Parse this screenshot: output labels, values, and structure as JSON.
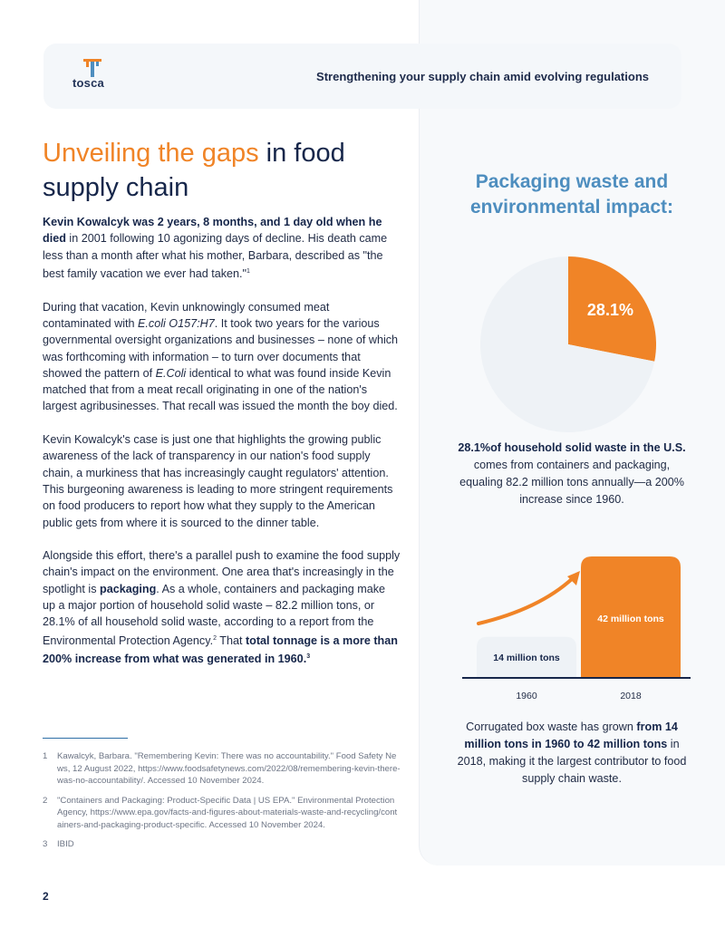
{
  "header": {
    "logo_text": "tosca",
    "tagline": "Strengthening your supply chain amid evolving regulations"
  },
  "title": {
    "accent": "Unveiling the gaps",
    "rest": " in food supply chain"
  },
  "body": {
    "p1_bold": "Kevin Kowalcyk was 2 years, 8 months, and 1 day old when he died",
    "p1_rest": " in 2001 following 10 agonizing days of decline. His death came less than a month after what his mother, Barbara, described as \"the best family vacation we ever had taken.\"",
    "p1_sup": "1",
    "p2_a": "During that vacation, Kevin unknowingly consumed meat contaminated with ",
    "p2_i1": "E.coli O157:H7",
    "p2_b": ". It took two years for the various governmental oversight organizations and businesses – none of which was forthcoming with information – to turn over documents that showed the pattern of ",
    "p2_i2": "E.Coli",
    "p2_c": " identical to what was found inside Kevin matched that from a meat recall originating in one of the nation's largest agribusinesses. That recall was issued the month the boy died.",
    "p3": "Kevin Kowalcyk's case is just one that highlights the growing public awareness of the lack of transparency in our nation's food supply chain, a murkiness that has increasingly caught regulators' attention. This burgeoning awareness is leading to more stringent requirements on food producers to report how what they supply to the American public gets from where it is sourced to the dinner table.",
    "p4_a": "Alongside this effort, there's a parallel push to examine the food supply chain's impact on the environment. One area that's increasingly in the spotlight is ",
    "p4_b1": "packaging",
    "p4_b": ". As a whole, containers and packaging make up a major portion of household solid waste – 82.2 million tons, or 28.1% of all household solid waste, according to a report from the Environmental Protection Agency.",
    "p4_sup1": "2",
    "p4_c": " That ",
    "p4_b2": "total tonnage is a more than 200% increase from what was generated in 1960.",
    "p4_sup2": "3"
  },
  "footnotes": [
    {
      "num": "1",
      "text": "Kawalcyk, Barbara. \"Remembering Kevin: There was no accountability.\" Food Safety News, 12 August 2022, https://www.foodsafetynews.com/2022/08/remembering-kevin-there-was-no-accountability/. Accessed 10 November 2024."
    },
    {
      "num": "2",
      "text": "\"Containers and Packaging: Product-Specific Data | US EPA.\" Environmental Protection Agency, https://www.epa.gov/facts-and-figures-about-materials-waste-and-recycling/containers-and-packaging-product-specific. Accessed 10 November 2024."
    },
    {
      "num": "3",
      "text": "IBID"
    }
  ],
  "page_number": "2",
  "sidebar": {
    "heading": "Packaging waste and environmental impact:",
    "pie_caption_bold": "28.1%of household solid waste in the U.S.",
    "pie_caption_rest": " comes from containers and packaging, equaling 82.2 million tons annually—a 200% increase since 1960.",
    "bar_caption_a": "Corrugated box waste has grown ",
    "bar_caption_bold": "from 14 million tons in 1960 to 42 million tons",
    "bar_caption_b": " in 2018, making it the largest contributor to food supply chain waste."
  },
  "colors": {
    "accent": "#f08427",
    "navy": "#16264a",
    "heading_blue": "#4e8ebf",
    "pie_rest": "#eef2f6",
    "bar_1960": "#eef2f6"
  },
  "chart_data": [
    {
      "type": "pie",
      "slices": [
        {
          "label": "28.1%",
          "value": 28.1,
          "color": "#f08427"
        },
        {
          "label": "",
          "value": 71.9,
          "color": "#eef2f6"
        }
      ]
    },
    {
      "type": "bar",
      "categories": [
        "1960",
        "2018"
      ],
      "values": [
        14,
        42
      ],
      "data_labels": [
        "14 million tons",
        "42 million tons"
      ],
      "colors": [
        "#eef2f6",
        "#f08427"
      ],
      "ylim": [
        0,
        42
      ]
    }
  ]
}
